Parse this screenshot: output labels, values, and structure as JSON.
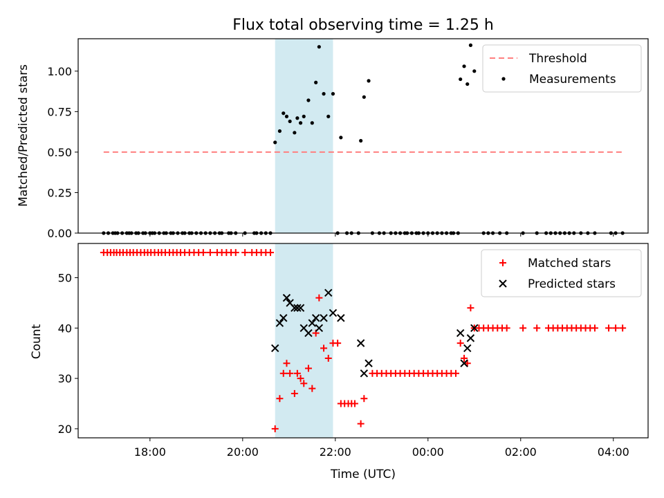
{
  "chart_data": {
    "title": "Flux total observing time = 1.25 h",
    "xlabel": "Time (UTC)",
    "x_unit": "hours (UTC; values above 24 are after midnight)",
    "x_ticks": [
      {
        "value": 18,
        "label": "18:00"
      },
      {
        "value": 20,
        "label": "20:00"
      },
      {
        "value": 22,
        "label": "22:00"
      },
      {
        "value": 24,
        "label": "00:00"
      },
      {
        "value": 26,
        "label": "02:00"
      },
      {
        "value": 28,
        "label": "04:00"
      }
    ],
    "xlim": [
      16.45,
      28.75
    ],
    "shaded_interval": {
      "x_start": 20.7,
      "x_end": 21.95,
      "color": "#add8e6"
    },
    "top_panel": {
      "type": "scatter",
      "ylabel": "Matched/Predicted stars",
      "ylim": [
        0,
        1.2
      ],
      "y_ticks": [
        "0.00",
        "0.25",
        "0.50",
        "0.75",
        "1.00"
      ],
      "y_tick_values": [
        0,
        0.25,
        0.5,
        0.75,
        1.0
      ],
      "legend_position": "top-right",
      "threshold": {
        "name": "Threshold",
        "y": 0.5,
        "x_range": [
          17.0,
          28.2
        ],
        "color": "#ff7f7f"
      },
      "measurements": {
        "name": "Measurements",
        "color": "#000000",
        "points": [
          [
            17.0,
            0
          ],
          [
            17.1,
            0
          ],
          [
            17.2,
            0
          ],
          [
            17.25,
            0
          ],
          [
            17.3,
            0
          ],
          [
            17.4,
            0
          ],
          [
            17.5,
            0
          ],
          [
            17.55,
            0
          ],
          [
            17.6,
            0
          ],
          [
            17.7,
            0
          ],
          [
            17.75,
            0
          ],
          [
            17.85,
            0
          ],
          [
            17.9,
            0
          ],
          [
            18.0,
            0
          ],
          [
            18.05,
            0
          ],
          [
            18.1,
            0
          ],
          [
            18.2,
            0
          ],
          [
            18.3,
            0
          ],
          [
            18.35,
            0
          ],
          [
            18.45,
            0
          ],
          [
            18.5,
            0
          ],
          [
            18.6,
            0
          ],
          [
            18.7,
            0
          ],
          [
            18.75,
            0
          ],
          [
            18.85,
            0
          ],
          [
            18.9,
            0
          ],
          [
            19.0,
            0
          ],
          [
            19.1,
            0
          ],
          [
            19.2,
            0
          ],
          [
            19.3,
            0
          ],
          [
            19.4,
            0
          ],
          [
            19.5,
            0
          ],
          [
            19.55,
            0
          ],
          [
            19.7,
            0
          ],
          [
            19.75,
            0
          ],
          [
            19.85,
            0
          ],
          [
            20.05,
            0
          ],
          [
            20.25,
            0
          ],
          [
            20.3,
            0
          ],
          [
            20.4,
            0
          ],
          [
            20.5,
            0
          ],
          [
            20.6,
            0
          ],
          [
            20.7,
            0.56
          ],
          [
            20.8,
            0.63
          ],
          [
            20.88,
            0.74
          ],
          [
            20.95,
            0.72
          ],
          [
            21.02,
            0.69
          ],
          [
            21.12,
            0.62
          ],
          [
            21.18,
            0.71
          ],
          [
            21.25,
            0.68
          ],
          [
            21.32,
            0.72
          ],
          [
            21.42,
            0.82
          ],
          [
            21.5,
            0.68
          ],
          [
            21.58,
            0.93
          ],
          [
            21.65,
            1.15
          ],
          [
            21.75,
            0.86
          ],
          [
            21.85,
            0.72
          ],
          [
            21.95,
            0.86
          ],
          [
            22.12,
            0.59
          ],
          [
            22.55,
            0.57
          ],
          [
            22.62,
            0.84
          ],
          [
            22.72,
            0.94
          ],
          [
            22.05,
            0
          ],
          [
            22.25,
            0
          ],
          [
            22.35,
            0
          ],
          [
            22.5,
            0
          ],
          [
            22.8,
            0
          ],
          [
            22.95,
            0
          ],
          [
            23.05,
            0
          ],
          [
            23.2,
            0
          ],
          [
            23.3,
            0
          ],
          [
            23.4,
            0
          ],
          [
            23.5,
            0
          ],
          [
            23.55,
            0
          ],
          [
            23.65,
            0
          ],
          [
            23.75,
            0
          ],
          [
            23.8,
            0
          ],
          [
            23.9,
            0
          ],
          [
            24.0,
            0
          ],
          [
            24.1,
            0
          ],
          [
            24.2,
            0
          ],
          [
            24.3,
            0
          ],
          [
            24.4,
            0
          ],
          [
            24.5,
            0
          ],
          [
            24.55,
            0
          ],
          [
            24.65,
            0
          ],
          [
            24.7,
            0.95
          ],
          [
            24.78,
            1.03
          ],
          [
            24.85,
            0.92
          ],
          [
            24.92,
            1.16
          ],
          [
            25.0,
            1.0
          ],
          [
            25.2,
            0
          ],
          [
            25.3,
            0
          ],
          [
            25.4,
            0
          ],
          [
            25.55,
            0
          ],
          [
            25.7,
            0
          ],
          [
            26.05,
            0
          ],
          [
            26.35,
            0
          ],
          [
            26.55,
            0
          ],
          [
            26.65,
            0
          ],
          [
            26.75,
            0
          ],
          [
            26.85,
            0
          ],
          [
            26.95,
            0
          ],
          [
            27.05,
            0
          ],
          [
            27.15,
            0
          ],
          [
            27.3,
            0
          ],
          [
            27.45,
            0
          ],
          [
            27.6,
            0
          ],
          [
            27.95,
            0
          ],
          [
            28.05,
            0
          ],
          [
            28.2,
            0
          ]
        ]
      }
    },
    "bottom_panel": {
      "type": "scatter",
      "ylabel": "Count",
      "ylim": [
        18.2,
        56.8
      ],
      "y_ticks": [
        "20",
        "30",
        "40",
        "50"
      ],
      "y_tick_values": [
        20,
        30,
        40,
        50
      ],
      "legend_position": "top-right",
      "matched": {
        "name": "Matched stars",
        "marker": "plus",
        "color": "#ff0000",
        "points": [
          [
            17.0,
            55
          ],
          [
            17.08,
            55
          ],
          [
            17.15,
            55
          ],
          [
            17.22,
            55
          ],
          [
            17.28,
            55
          ],
          [
            17.35,
            55
          ],
          [
            17.42,
            55
          ],
          [
            17.5,
            55
          ],
          [
            17.57,
            55
          ],
          [
            17.64,
            55
          ],
          [
            17.72,
            55
          ],
          [
            17.8,
            55
          ],
          [
            17.88,
            55
          ],
          [
            17.95,
            55
          ],
          [
            18.02,
            55
          ],
          [
            18.1,
            55
          ],
          [
            18.18,
            55
          ],
          [
            18.25,
            55
          ],
          [
            18.33,
            55
          ],
          [
            18.42,
            55
          ],
          [
            18.5,
            55
          ],
          [
            18.58,
            55
          ],
          [
            18.66,
            55
          ],
          [
            18.75,
            55
          ],
          [
            18.85,
            55
          ],
          [
            18.95,
            55
          ],
          [
            19.05,
            55
          ],
          [
            19.15,
            55
          ],
          [
            19.3,
            55
          ],
          [
            19.45,
            55
          ],
          [
            19.55,
            55
          ],
          [
            19.65,
            55
          ],
          [
            19.75,
            55
          ],
          [
            19.85,
            55
          ],
          [
            20.05,
            55
          ],
          [
            20.2,
            55
          ],
          [
            20.3,
            55
          ],
          [
            20.4,
            55
          ],
          [
            20.5,
            55
          ],
          [
            20.6,
            55
          ],
          [
            20.7,
            20
          ],
          [
            20.8,
            26
          ],
          [
            20.88,
            31
          ],
          [
            20.95,
            33
          ],
          [
            21.02,
            31
          ],
          [
            21.12,
            27
          ],
          [
            21.18,
            31
          ],
          [
            21.25,
            30
          ],
          [
            21.32,
            29
          ],
          [
            21.42,
            32
          ],
          [
            21.5,
            28
          ],
          [
            21.58,
            39
          ],
          [
            21.65,
            46
          ],
          [
            21.75,
            36
          ],
          [
            21.85,
            34
          ],
          [
            21.95,
            37
          ],
          [
            22.05,
            37
          ],
          [
            22.12,
            25
          ],
          [
            22.2,
            25
          ],
          [
            22.28,
            25
          ],
          [
            22.35,
            25
          ],
          [
            22.42,
            25
          ],
          [
            22.55,
            21
          ],
          [
            22.62,
            26
          ],
          [
            22.8,
            31
          ],
          [
            22.9,
            31
          ],
          [
            23.0,
            31
          ],
          [
            23.1,
            31
          ],
          [
            23.2,
            31
          ],
          [
            23.3,
            31
          ],
          [
            23.4,
            31
          ],
          [
            23.5,
            31
          ],
          [
            23.6,
            31
          ],
          [
            23.7,
            31
          ],
          [
            23.8,
            31
          ],
          [
            23.9,
            31
          ],
          [
            24.0,
            31
          ],
          [
            24.1,
            31
          ],
          [
            24.2,
            31
          ],
          [
            24.3,
            31
          ],
          [
            24.4,
            31
          ],
          [
            24.5,
            31
          ],
          [
            24.6,
            31
          ],
          [
            24.7,
            37
          ],
          [
            24.78,
            34
          ],
          [
            24.85,
            33
          ],
          [
            24.92,
            44
          ],
          [
            25.0,
            40
          ],
          [
            25.1,
            40
          ],
          [
            25.2,
            40
          ],
          [
            25.3,
            40
          ],
          [
            25.4,
            40
          ],
          [
            25.5,
            40
          ],
          [
            25.6,
            40
          ],
          [
            25.7,
            40
          ],
          [
            26.05,
            40
          ],
          [
            26.35,
            40
          ],
          [
            26.6,
            40
          ],
          [
            26.7,
            40
          ],
          [
            26.8,
            40
          ],
          [
            26.9,
            40
          ],
          [
            27.0,
            40
          ],
          [
            27.1,
            40
          ],
          [
            27.2,
            40
          ],
          [
            27.3,
            40
          ],
          [
            27.4,
            40
          ],
          [
            27.5,
            40
          ],
          [
            27.6,
            40
          ],
          [
            27.9,
            40
          ],
          [
            28.05,
            40
          ],
          [
            28.2,
            40
          ]
        ]
      },
      "predicted": {
        "name": "Predicted stars",
        "marker": "x",
        "color": "#000000",
        "points": [
          [
            20.7,
            36
          ],
          [
            20.8,
            41
          ],
          [
            20.88,
            42
          ],
          [
            20.95,
            46
          ],
          [
            21.02,
            45
          ],
          [
            21.12,
            44
          ],
          [
            21.18,
            44
          ],
          [
            21.25,
            44
          ],
          [
            21.32,
            40
          ],
          [
            21.42,
            39
          ],
          [
            21.5,
            41
          ],
          [
            21.58,
            42
          ],
          [
            21.65,
            40
          ],
          [
            21.75,
            42
          ],
          [
            21.85,
            47
          ],
          [
            21.95,
            43
          ],
          [
            22.12,
            42
          ],
          [
            22.55,
            37
          ],
          [
            22.62,
            31
          ],
          [
            22.72,
            33
          ],
          [
            24.7,
            39
          ],
          [
            24.78,
            33
          ],
          [
            24.85,
            36
          ],
          [
            24.92,
            38
          ],
          [
            25.0,
            40
          ]
        ]
      }
    }
  }
}
